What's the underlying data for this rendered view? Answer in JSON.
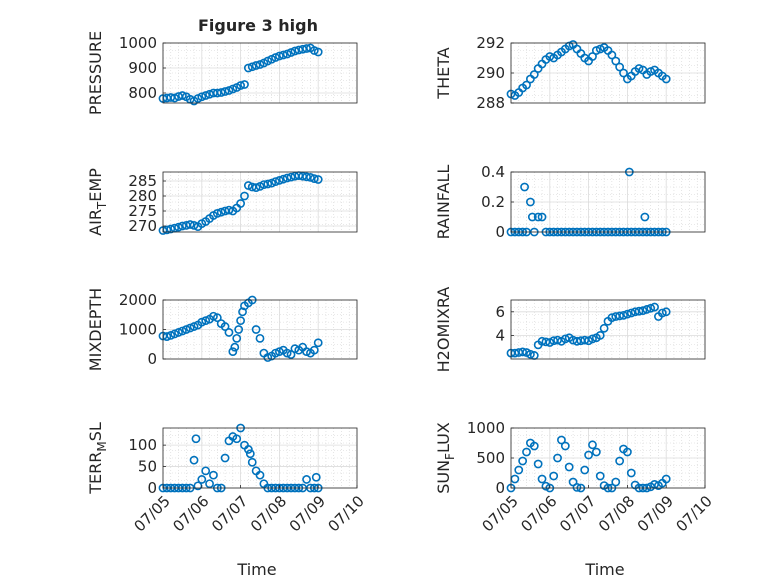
{
  "figure": {
    "title": "Figure 3 high",
    "xlabel": "Time",
    "marker_color": "#0072BD",
    "grid": true,
    "minor_grid": true
  },
  "chart_data": [
    {
      "type": "scatter",
      "ylabel": {
        "pre": "PRESSURE",
        "sub": "",
        "post": ""
      },
      "ylim": [
        760,
        1000
      ],
      "yticks": [
        800,
        900,
        1000
      ],
      "xlim": [
        0,
        5
      ],
      "xticks": [],
      "xticklabels": [],
      "x": [
        0.0,
        0.1,
        0.2,
        0.3,
        0.4,
        0.5,
        0.6,
        0.7,
        0.8,
        0.9,
        1.0,
        1.1,
        1.2,
        1.3,
        1.4,
        1.5,
        1.6,
        1.7,
        1.8,
        1.9,
        2.0,
        2.1,
        2.2,
        2.3,
        2.4,
        2.5,
        2.6,
        2.7,
        2.8,
        2.9,
        3.0,
        3.1,
        3.2,
        3.3,
        3.4,
        3.5,
        3.6,
        3.7,
        3.8,
        3.9,
        4.0
      ],
      "y": [
        778,
        780,
        782,
        780,
        786,
        790,
        785,
        775,
        768,
        778,
        785,
        790,
        795,
        800,
        800,
        802,
        806,
        810,
        816,
        822,
        830,
        834,
        900,
        905,
        910,
        914,
        920,
        928,
        935,
        942,
        948,
        952,
        956,
        962,
        968,
        972,
        975,
        978,
        980,
        970,
        964
      ]
    },
    {
      "type": "scatter",
      "ylabel": {
        "pre": "THETA",
        "sub": "",
        "post": ""
      },
      "ylim": [
        288,
        292
      ],
      "yticks": [
        288,
        290,
        292
      ],
      "xlim": [
        0,
        5
      ],
      "xticks": [],
      "xticklabels": [],
      "x": [
        0.0,
        0.1,
        0.2,
        0.3,
        0.4,
        0.5,
        0.6,
        0.7,
        0.8,
        0.9,
        1.0,
        1.1,
        1.2,
        1.3,
        1.4,
        1.5,
        1.6,
        1.7,
        1.8,
        1.9,
        2.0,
        2.1,
        2.2,
        2.3,
        2.4,
        2.5,
        2.6,
        2.7,
        2.8,
        2.9,
        3.0,
        3.1,
        3.2,
        3.3,
        3.4,
        3.5,
        3.6,
        3.7,
        3.8,
        3.9,
        4.0
      ],
      "y": [
        288.6,
        288.5,
        288.7,
        289.0,
        289.2,
        289.6,
        289.9,
        290.3,
        290.6,
        290.9,
        291.1,
        291.0,
        291.2,
        291.4,
        291.6,
        291.8,
        291.9,
        291.6,
        291.3,
        291.0,
        290.8,
        291.1,
        291.5,
        291.6,
        291.7,
        291.5,
        291.2,
        290.8,
        290.4,
        290.0,
        289.6,
        289.8,
        290.1,
        290.3,
        290.2,
        289.9,
        290.1,
        290.2,
        290.0,
        289.8,
        289.6
      ]
    },
    {
      "type": "scatter",
      "ylabel": {
        "pre": "AIR",
        "sub": "T",
        "post": "EMP"
      },
      "ylim": [
        268,
        288
      ],
      "yticks": [
        270,
        275,
        280,
        285
      ],
      "xlim": [
        0,
        5
      ],
      "xticks": [],
      "xticklabels": [],
      "x": [
        0.0,
        0.1,
        0.2,
        0.3,
        0.4,
        0.5,
        0.6,
        0.7,
        0.8,
        0.9,
        1.0,
        1.1,
        1.2,
        1.3,
        1.4,
        1.5,
        1.6,
        1.7,
        1.8,
        1.9,
        2.0,
        2.1,
        2.2,
        2.3,
        2.4,
        2.5,
        2.6,
        2.7,
        2.8,
        2.9,
        3.0,
        3.1,
        3.2,
        3.3,
        3.4,
        3.5,
        3.6,
        3.7,
        3.8,
        3.9,
        4.0
      ],
      "y": [
        268.5,
        268.7,
        269.0,
        269.3,
        269.6,
        270.0,
        270.2,
        270.5,
        270.2,
        269.8,
        270.8,
        271.5,
        272.5,
        273.5,
        274.2,
        274.6,
        275.0,
        275.3,
        275.0,
        276.0,
        277.5,
        280.0,
        283.5,
        283.0,
        282.8,
        283.2,
        283.8,
        284.0,
        284.3,
        284.8,
        285.2,
        285.6,
        286.0,
        286.3,
        286.6,
        286.8,
        286.6,
        286.4,
        286.2,
        285.8,
        285.5
      ]
    },
    {
      "type": "scatter",
      "ylabel": {
        "pre": "RAINFALL",
        "sub": "",
        "post": ""
      },
      "ylim": [
        0,
        0.4
      ],
      "yticks": [
        0,
        0.2,
        0.4
      ],
      "yticklabels": [
        "0",
        "0.2",
        "0.4"
      ],
      "xlim": [
        0,
        5
      ],
      "xticks": [],
      "xticklabels": [],
      "x": [
        0.0,
        0.1,
        0.2,
        0.3,
        0.35,
        0.4,
        0.5,
        0.55,
        0.6,
        0.7,
        0.8,
        0.9,
        1.0,
        1.1,
        1.2,
        1.3,
        1.4,
        1.5,
        1.6,
        1.7,
        1.8,
        1.9,
        2.0,
        2.1,
        2.2,
        2.3,
        2.4,
        2.5,
        2.6,
        2.7,
        2.8,
        2.9,
        3.0,
        3.05,
        3.1,
        3.2,
        3.3,
        3.4,
        3.45,
        3.5,
        3.6,
        3.7,
        3.8,
        3.9,
        4.0
      ],
      "y": [
        0,
        0,
        0,
        0,
        0.3,
        0,
        0.2,
        0.1,
        0,
        0.1,
        0.1,
        0,
        0,
        0,
        0,
        0,
        0,
        0,
        0,
        0,
        0,
        0,
        0,
        0,
        0,
        0,
        0,
        0,
        0,
        0,
        0,
        0,
        0,
        0.4,
        0,
        0,
        0,
        0,
        0.1,
        0,
        0,
        0,
        0,
        0,
        0
      ]
    },
    {
      "type": "scatter",
      "ylabel": {
        "pre": "MIXDEPTH",
        "sub": "",
        "post": ""
      },
      "ylim": [
        0,
        2000
      ],
      "yticks": [
        0,
        1000,
        2000
      ],
      "xlim": [
        0,
        5
      ],
      "xticks": [],
      "xticklabels": [],
      "x": [
        0.0,
        0.1,
        0.2,
        0.3,
        0.4,
        0.5,
        0.6,
        0.7,
        0.8,
        0.9,
        1.0,
        1.1,
        1.2,
        1.3,
        1.4,
        1.5,
        1.6,
        1.7,
        1.8,
        1.85,
        1.9,
        1.95,
        2.0,
        2.05,
        2.1,
        2.2,
        2.3,
        2.4,
        2.5,
        2.6,
        2.7,
        2.8,
        2.9,
        3.0,
        3.1,
        3.2,
        3.3,
        3.4,
        3.5,
        3.6,
        3.7,
        3.8,
        3.9,
        4.0
      ],
      "y": [
        780,
        760,
        800,
        850,
        900,
        950,
        1000,
        1050,
        1100,
        1150,
        1250,
        1300,
        1350,
        1450,
        1400,
        1200,
        1100,
        900,
        250,
        400,
        700,
        1000,
        1300,
        1600,
        1800,
        1900,
        2000,
        1000,
        700,
        200,
        50,
        100,
        200,
        250,
        300,
        200,
        150,
        350,
        300,
        400,
        250,
        200,
        300,
        550
      ]
    },
    {
      "type": "scatter",
      "ylabel": {
        "pre": "H2OMIXRA",
        "sub": "",
        "post": ""
      },
      "ylim": [
        2,
        7
      ],
      "yticks": [
        4,
        6
      ],
      "xlim": [
        0,
        5
      ],
      "xticks": [],
      "xticklabels": [],
      "x": [
        0.0,
        0.1,
        0.2,
        0.3,
        0.4,
        0.5,
        0.6,
        0.7,
        0.8,
        0.9,
        1.0,
        1.1,
        1.2,
        1.3,
        1.4,
        1.5,
        1.6,
        1.7,
        1.8,
        1.9,
        2.0,
        2.1,
        2.2,
        2.3,
        2.4,
        2.5,
        2.6,
        2.7,
        2.8,
        2.9,
        3.0,
        3.1,
        3.2,
        3.3,
        3.4,
        3.5,
        3.6,
        3.7,
        3.8,
        3.9,
        4.0
      ],
      "y": [
        2.5,
        2.5,
        2.55,
        2.6,
        2.55,
        2.4,
        2.3,
        3.2,
        3.5,
        3.45,
        3.4,
        3.55,
        3.6,
        3.5,
        3.7,
        3.8,
        3.6,
        3.5,
        3.55,
        3.6,
        3.55,
        3.7,
        3.8,
        4.0,
        4.6,
        5.2,
        5.5,
        5.6,
        5.65,
        5.7,
        5.8,
        5.9,
        6.0,
        6.05,
        6.1,
        6.2,
        6.3,
        6.4,
        5.6,
        5.9,
        6.0
      ]
    },
    {
      "type": "scatter",
      "ylabel": {
        "pre": "TERR",
        "sub": "M",
        "post": "SL"
      },
      "ylim": [
        0,
        140
      ],
      "yticks": [
        0,
        50,
        100
      ],
      "xlim": [
        0,
        5
      ],
      "xticks": [
        0,
        1,
        2,
        3,
        4,
        5
      ],
      "xticklabels": [
        "07/05",
        "07/06",
        "07/07",
        "07/08",
        "07/09",
        "07/10"
      ],
      "x": [
        0.0,
        0.1,
        0.2,
        0.3,
        0.4,
        0.5,
        0.6,
        0.7,
        0.8,
        0.85,
        0.9,
        1.0,
        1.1,
        1.2,
        1.3,
        1.4,
        1.5,
        1.6,
        1.7,
        1.8,
        1.9,
        2.0,
        2.1,
        2.2,
        2.25,
        2.3,
        2.4,
        2.5,
        2.6,
        2.7,
        2.8,
        2.9,
        3.0,
        3.1,
        3.2,
        3.3,
        3.4,
        3.5,
        3.6,
        3.7,
        3.8,
        3.9,
        3.95,
        4.0
      ],
      "y": [
        0,
        0,
        0,
        0,
        0,
        0,
        0,
        0,
        65,
        115,
        5,
        20,
        40,
        10,
        30,
        0,
        0,
        70,
        110,
        120,
        115,
        140,
        100,
        90,
        80,
        60,
        40,
        30,
        10,
        0,
        0,
        0,
        0,
        0,
        0,
        0,
        0,
        0,
        0,
        20,
        0,
        0,
        25,
        0
      ]
    },
    {
      "type": "scatter",
      "ylabel": {
        "pre": "SUN",
        "sub": "F",
        "post": "LUX"
      },
      "ylim": [
        0,
        1000
      ],
      "yticks": [
        0,
        500,
        1000
      ],
      "xlim": [
        0,
        5
      ],
      "xticks": [
        0,
        1,
        2,
        3,
        4,
        5
      ],
      "xticklabels": [
        "07/05",
        "07/06",
        "07/07",
        "07/08",
        "07/09",
        "07/10"
      ],
      "x": [
        0.0,
        0.1,
        0.2,
        0.3,
        0.4,
        0.5,
        0.6,
        0.7,
        0.8,
        0.9,
        1.0,
        1.1,
        1.2,
        1.3,
        1.4,
        1.5,
        1.6,
        1.7,
        1.8,
        1.9,
        2.0,
        2.1,
        2.2,
        2.3,
        2.4,
        2.5,
        2.6,
        2.7,
        2.8,
        2.9,
        3.0,
        3.1,
        3.2,
        3.3,
        3.4,
        3.5,
        3.6,
        3.7,
        3.8,
        3.9,
        4.0
      ],
      "y": [
        0,
        150,
        300,
        450,
        600,
        750,
        700,
        400,
        150,
        30,
        0,
        200,
        500,
        800,
        700,
        350,
        100,
        10,
        0,
        300,
        550,
        720,
        600,
        200,
        40,
        0,
        0,
        100,
        450,
        650,
        600,
        250,
        50,
        0,
        0,
        0,
        20,
        60,
        40,
        80,
        150
      ]
    }
  ]
}
